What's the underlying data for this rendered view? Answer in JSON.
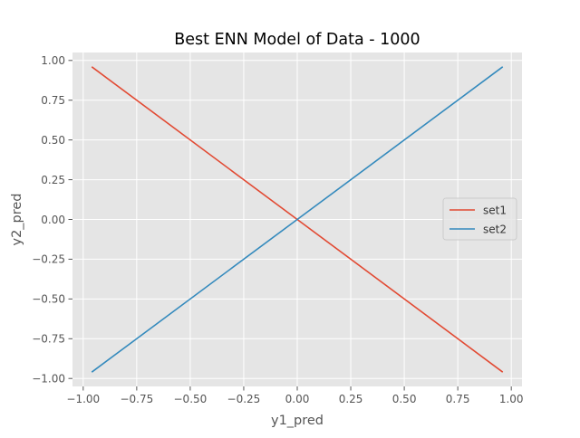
{
  "chart_data": {
    "type": "line",
    "title": "Best ENN Model of Data - 1000",
    "xlabel": "y1_pred",
    "ylabel": "y2_pred",
    "xlim": [
      -1.05,
      1.05
    ],
    "ylim": [
      -1.05,
      1.05
    ],
    "xticks": [
      -1.0,
      -0.75,
      -0.5,
      -0.25,
      0.0,
      0.25,
      0.5,
      0.75,
      1.0
    ],
    "yticks": [
      -1.0,
      -0.75,
      -0.5,
      -0.25,
      0.0,
      0.25,
      0.5,
      0.75,
      1.0
    ],
    "xtick_labels": [
      "−1.00",
      "−0.75",
      "−0.50",
      "−0.25",
      "0.00",
      "0.25",
      "0.50",
      "0.75",
      "1.00"
    ],
    "ytick_labels": [
      "−1.00",
      "−0.75",
      "−0.50",
      "−0.25",
      "0.00",
      "0.25",
      "0.50",
      "0.75",
      "1.00"
    ],
    "grid": true,
    "legend_position": "center-right",
    "series": [
      {
        "name": "set1",
        "color": "#E24A33",
        "x": [
          -0.96,
          0.0,
          0.96
        ],
        "y": [
          0.96,
          0.0,
          -0.96
        ]
      },
      {
        "name": "set2",
        "color": "#348ABD",
        "x": [
          -0.96,
          0.0,
          0.96
        ],
        "y": [
          -0.96,
          0.0,
          0.96
        ]
      }
    ],
    "style": {
      "plot_background": "#E5E5E5",
      "grid_color": "#FFFFFF",
      "tick_color": "#555555",
      "label_color": "#555555",
      "title_color": "#000000"
    }
  }
}
